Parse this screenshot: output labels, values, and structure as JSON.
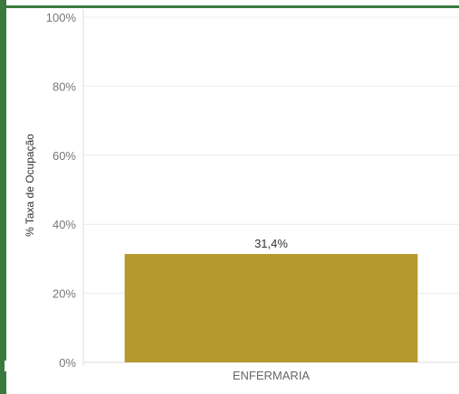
{
  "chart_data": {
    "type": "bar",
    "categories": [
      "ENFERMARIA"
    ],
    "values": [
      31.4
    ],
    "value_labels": [
      "31,4%"
    ],
    "title": "",
    "xlabel": "",
    "ylabel": "% Taxa de Ocupação",
    "ylim": [
      0,
      100
    ],
    "yticks": [
      0,
      20,
      40,
      60,
      80,
      100
    ],
    "ytick_labels": [
      "0%",
      "20%",
      "40%",
      "60%",
      "80%",
      "100%"
    ],
    "grid": true,
    "legend": "none"
  },
  "colors": {
    "bar": "#b5982e",
    "frame": "#3a7a3e",
    "grid": "#ececec"
  }
}
